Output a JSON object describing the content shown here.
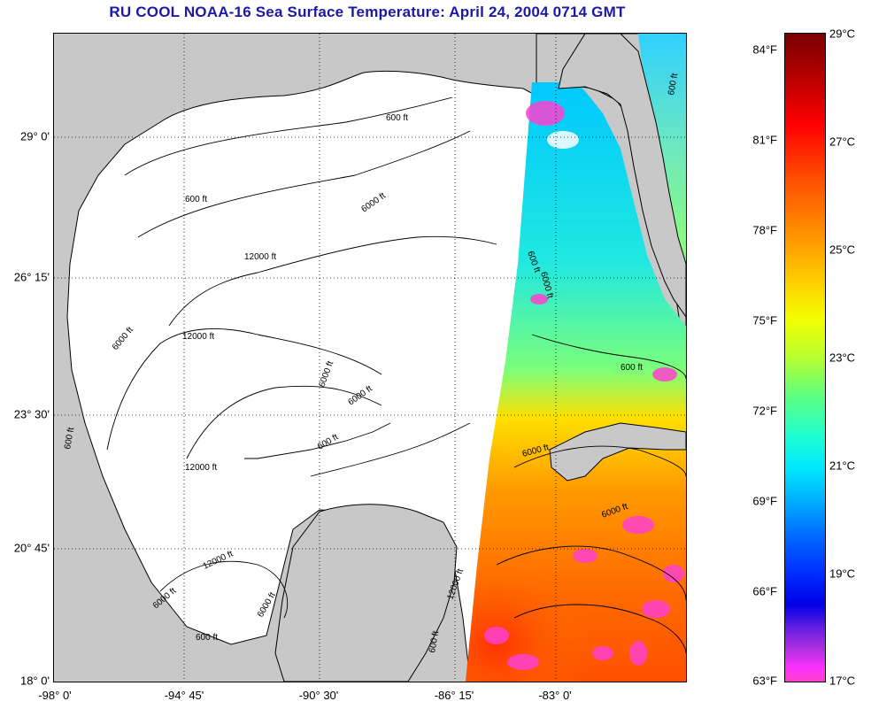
{
  "title": "RU COOL  NOAA-16  Sea Surface Temperature:  April 24, 2004 0714 GMT",
  "latitude_labels": [
    "29° 0'",
    "26° 15'",
    "23° 30'",
    "20° 45'",
    "18° 0'"
  ],
  "longitude_labels": [
    "-98° 0'",
    "-94° 45'",
    "-90° 30'",
    "-86° 15'",
    "-83° 0'"
  ],
  "contour_labels": [
    "600 ft",
    "6000 ft",
    "12000 ft",
    "600 ft",
    "6000 ft",
    "12000 ft",
    "600 ft",
    "6000 ft",
    "6000 ft",
    "600 ft",
    "600 ft",
    "6000 ft",
    "600 ft",
    "12000 ft",
    "6000 ft",
    "12000 ft",
    "6000 ft",
    "600 ft",
    "6000 ft",
    "12000 ft",
    "6000 ft",
    "600 ft",
    "600 ft"
  ],
  "colorbar": {
    "fahrenheit_labels": [
      "84°F",
      "81°F",
      "78°F",
      "75°F",
      "72°F",
      "69°F",
      "66°F",
      "63°F"
    ],
    "celsius_labels": [
      "29°C",
      "27°C",
      "25°C",
      "23°C",
      "21°C",
      "19°C",
      "17°C"
    ],
    "min_c": 17,
    "max_c": 29,
    "palette": [
      "#7a0000",
      "#ff0000",
      "#ff8a00",
      "#f4ff00",
      "#5cff80",
      "#00e8ff",
      "#0070ff",
      "#0000e8",
      "#b030e0",
      "#ff40c8"
    ]
  },
  "colors": {
    "title": "#1a1aa6",
    "land": "#c8c8c8",
    "masked_water": "#ffffff"
  }
}
